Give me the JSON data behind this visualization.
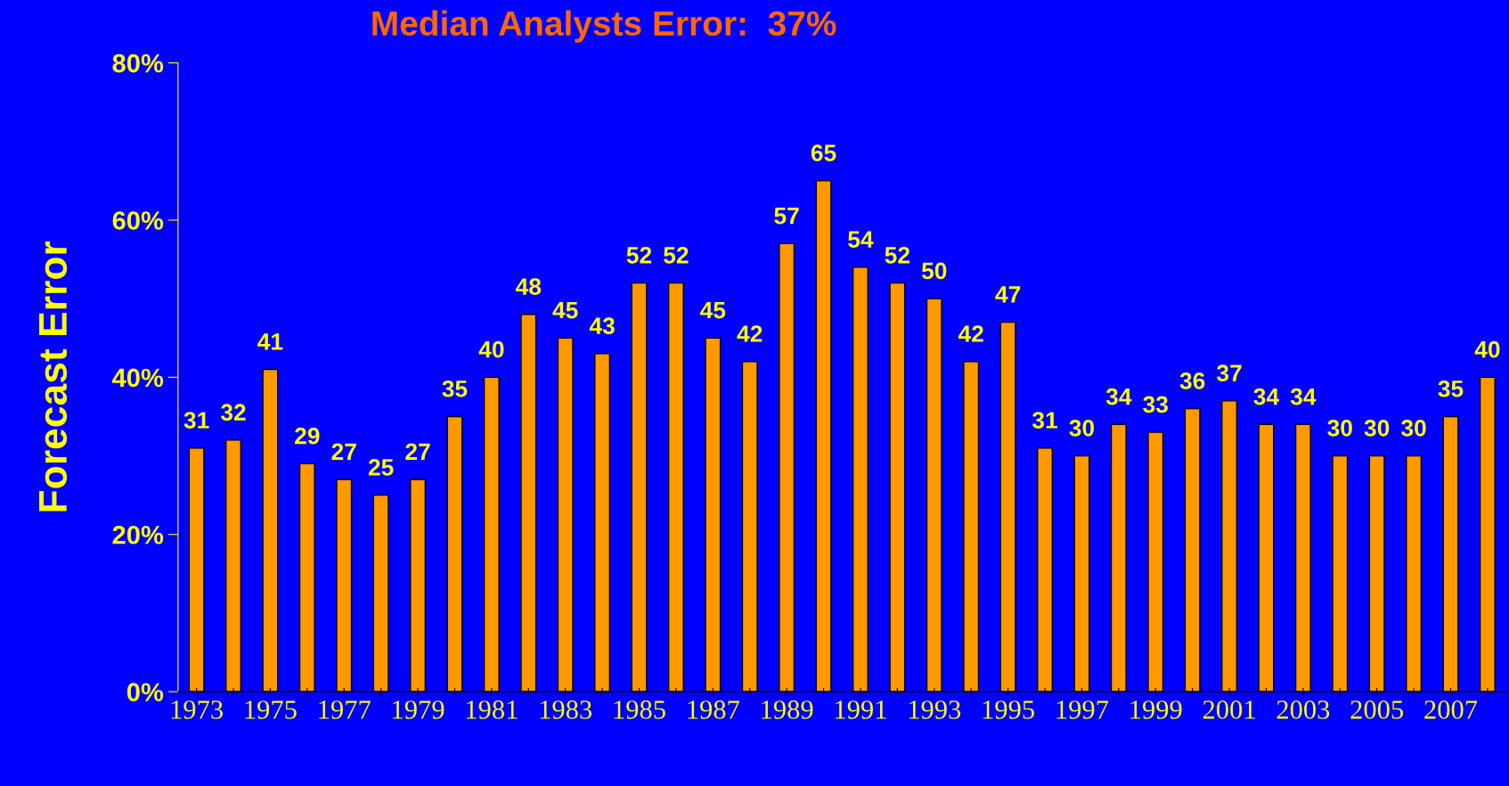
{
  "chart_data": {
    "type": "bar",
    "title": "Median Analysts Error:  37%",
    "ylabel": "Forecast Error",
    "categories": [
      "1973",
      null,
      "1975",
      null,
      "1977",
      null,
      "1979",
      null,
      "1981",
      null,
      "1983",
      null,
      "1985",
      null,
      "1987",
      null,
      "1989",
      null,
      "1991",
      null,
      "1993",
      null,
      "1995",
      null,
      "1997",
      null,
      "1999",
      null,
      "2001",
      null,
      "2003",
      null,
      "2005",
      null,
      "2007",
      null
    ],
    "values": [
      31,
      32,
      41,
      29,
      27,
      25,
      27,
      35,
      40,
      48,
      45,
      43,
      52,
      52,
      45,
      42,
      57,
      65,
      54,
      52,
      50,
      42,
      47,
      31,
      30,
      34,
      33,
      36,
      37,
      34,
      34,
      30,
      30,
      30,
      35,
      40
    ],
    "color": "#ff9900",
    "data_labels": true,
    "ylim": [
      0,
      80
    ],
    "yticks": [
      {
        "value": 0,
        "label": "0%"
      },
      {
        "value": 20,
        "label": "20%"
      },
      {
        "value": 40,
        "label": "40%"
      },
      {
        "value": 60,
        "label": "60%"
      },
      {
        "value": 80,
        "label": "80%"
      }
    ]
  }
}
